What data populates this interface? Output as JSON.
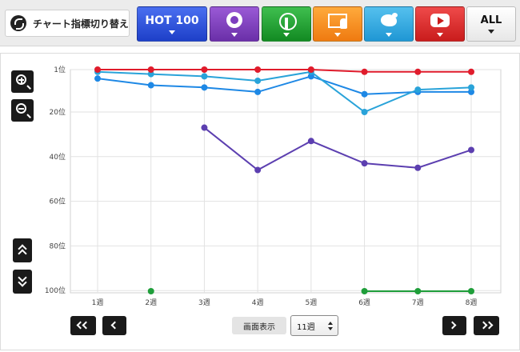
{
  "toolbar": {
    "switch_label": "チャート指標切り替え",
    "switch_icon": "switch-icon",
    "buttons": [
      {
        "name": "hot100-button",
        "label": "HOT 100",
        "color": "#2a4fd8"
      },
      {
        "name": "look-button",
        "icon": "disc-person-icon",
        "color": "#7d3fbf"
      },
      {
        "name": "radio-button",
        "icon": "antenna-icon",
        "color": "#1f9a2f"
      },
      {
        "name": "pc-button",
        "icon": "computer-disc-icon",
        "color": "#f58a1f"
      },
      {
        "name": "twitter-button",
        "icon": "twitter-bird-icon",
        "color": "#2ea6e0"
      },
      {
        "name": "youtube-button",
        "icon": "youtube-play-icon",
        "color": "#d92b2b"
      },
      {
        "name": "all-button",
        "label": "ALL",
        "color": "#f4f4f4"
      }
    ]
  },
  "controls": {
    "zoom_in_icon": "zoom-in-icon",
    "zoom_out_icon": "zoom-out-icon",
    "scroll_up_icon": "double-chevron-up-icon",
    "scroll_down_icon": "double-chevron-down-icon",
    "first_icon": "double-chevron-left-icon",
    "prev_icon": "chevron-left-icon",
    "next_icon": "chevron-right-icon",
    "last_icon": "double-chevron-right-icon",
    "display_label": "画面表示",
    "display_value": "11週"
  },
  "chart_data": {
    "type": "line",
    "categories": [
      "1週",
      "2週",
      "3週",
      "4週",
      "5週",
      "6週",
      "7週",
      "8週"
    ],
    "y_ticks": [
      {
        "value": 1,
        "label": "1位"
      },
      {
        "value": 20,
        "label": "20位"
      },
      {
        "value": 40,
        "label": "40位"
      },
      {
        "value": 60,
        "label": "60位"
      },
      {
        "value": 80,
        "label": "80位"
      },
      {
        "value": 100,
        "label": "100位"
      }
    ],
    "ylim": [
      1,
      101
    ],
    "y_inverted": true,
    "grid": true,
    "series": [
      {
        "color": "#1e88e5",
        "values": [
          5,
          8,
          9,
          11,
          4,
          12,
          11,
          11
        ]
      },
      {
        "color": "#29a3d9",
        "values": [
          2,
          3,
          4,
          6,
          2,
          20,
          10,
          9
        ]
      },
      {
        "color": "#5c3fb0",
        "values": [
          null,
          null,
          27,
          46,
          33,
          43,
          45,
          37
        ]
      },
      {
        "color": "#e01c2c",
        "values": [
          1,
          1,
          1,
          1,
          1,
          2,
          2,
          2
        ]
      },
      {
        "color": "#1f9e3a",
        "values": [
          null,
          102,
          null,
          null,
          null,
          102,
          102,
          102
        ]
      }
    ]
  }
}
